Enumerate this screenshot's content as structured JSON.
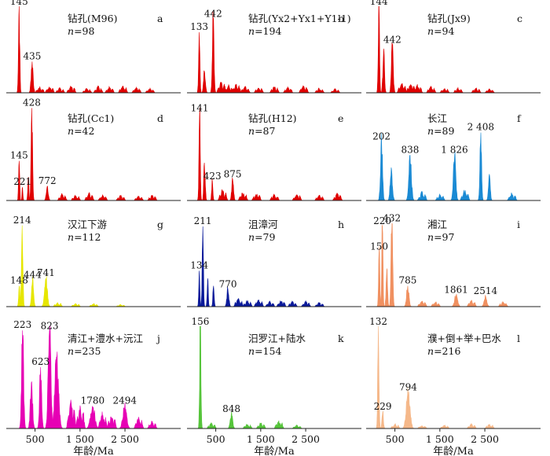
{
  "chart_data": [
    {
      "id": "a",
      "type": "area",
      "title": "钻孔(M96)",
      "n": "98",
      "letter": "a",
      "color": "#e00000",
      "xlim": [
        0,
        3600
      ],
      "ylim": [
        0,
        1
      ],
      "peaks": [
        {
          "x": 145,
          "y": 1.0,
          "w": 14,
          "label": "145"
        },
        {
          "x": 435,
          "y": 0.36,
          "w": 22,
          "label": "435"
        }
      ],
      "minor": [
        [
          600,
          0.06
        ],
        [
          820,
          0.07
        ],
        [
          1050,
          0.05
        ],
        [
          1300,
          0.07
        ],
        [
          1650,
          0.05
        ],
        [
          1900,
          0.07
        ],
        [
          2150,
          0.06
        ],
        [
          2450,
          0.07
        ],
        [
          2750,
          0.06
        ],
        [
          3050,
          0.05
        ]
      ]
    },
    {
      "id": "b",
      "type": "area",
      "title": "钻孔(Yx2+Yx1+Y1-1)",
      "n": "194",
      "letter": "b",
      "color": "#e00000",
      "xlim": [
        0,
        3600
      ],
      "ylim": [
        0,
        1
      ],
      "peaks": [
        {
          "x": 133,
          "y": 0.7,
          "w": 14,
          "label": "133"
        },
        {
          "x": 442,
          "y": 0.85,
          "w": 18,
          "label": "442"
        },
        {
          "x": 250,
          "y": 0.25,
          "w": 20,
          "label": ""
        }
      ],
      "minor": [
        [
          620,
          0.12
        ],
        [
          780,
          0.08
        ],
        [
          950,
          0.1
        ],
        [
          1150,
          0.07
        ],
        [
          1450,
          0.06
        ],
        [
          1800,
          0.07
        ],
        [
          2100,
          0.06
        ],
        [
          2450,
          0.08
        ],
        [
          2800,
          0.05
        ],
        [
          3150,
          0.04
        ]
      ]
    },
    {
      "id": "c",
      "type": "area",
      "title": "钻孔(Jx9)",
      "n": "94",
      "letter": "c",
      "color": "#e00000",
      "xlim": [
        0,
        3600
      ],
      "ylim": [
        0,
        1
      ],
      "peaks": [
        {
          "x": 144,
          "y": 1.0,
          "w": 14,
          "label": "144"
        },
        {
          "x": 442,
          "y": 0.55,
          "w": 20,
          "label": "442"
        },
        {
          "x": 250,
          "y": 0.45,
          "w": 18,
          "label": ""
        }
      ],
      "minor": [
        [
          650,
          0.12
        ],
        [
          850,
          0.1
        ],
        [
          1000,
          0.08
        ],
        [
          1300,
          0.07
        ],
        [
          1600,
          0.05
        ],
        [
          1900,
          0.05
        ],
        [
          2300,
          0.05
        ],
        [
          2600,
          0.04
        ]
      ]
    },
    {
      "id": "d",
      "type": "area",
      "title": "钻孔(Cc1)",
      "n": "42",
      "letter": "d",
      "color": "#e00000",
      "xlim": [
        0,
        3600
      ],
      "ylim": [
        0,
        1
      ],
      "peaks": [
        {
          "x": 145,
          "y": 0.42,
          "w": 12,
          "label": "145"
        },
        {
          "x": 221,
          "y": 0.14,
          "w": 10,
          "label": "221"
        },
        {
          "x": 428,
          "y": 0.98,
          "w": 16,
          "label": "428"
        },
        {
          "x": 772,
          "y": 0.15,
          "w": 22,
          "label": "772"
        },
        {
          "x": 350,
          "y": 0.25,
          "w": 12,
          "label": ""
        }
      ],
      "minor": [
        [
          1100,
          0.06
        ],
        [
          1400,
          0.05
        ],
        [
          1700,
          0.07
        ],
        [
          2000,
          0.05
        ],
        [
          2400,
          0.05
        ],
        [
          2800,
          0.04
        ],
        [
          3100,
          0.05
        ]
      ]
    },
    {
      "id": "e",
      "type": "area",
      "title": "钻孔(H12)",
      "n": "87",
      "letter": "e",
      "color": "#e00000",
      "xlim": [
        0,
        3600
      ],
      "ylim": [
        0,
        1
      ],
      "peaks": [
        {
          "x": 141,
          "y": 0.92,
          "w": 14,
          "label": "141"
        },
        {
          "x": 423,
          "y": 0.2,
          "w": 14,
          "label": "423"
        },
        {
          "x": 875,
          "y": 0.22,
          "w": 20,
          "label": "875"
        },
        {
          "x": 250,
          "y": 0.4,
          "w": 16,
          "label": ""
        }
      ],
      "minor": [
        [
          650,
          0.1
        ],
        [
          1100,
          0.08
        ],
        [
          1400,
          0.07
        ],
        [
          1800,
          0.06
        ],
        [
          2300,
          0.06
        ],
        [
          2800,
          0.05
        ],
        [
          3200,
          0.07
        ]
      ]
    },
    {
      "id": "f",
      "type": "area",
      "title": "长江",
      "n": "89",
      "letter": "f",
      "color": "#1a8ad4",
      "xlim": [
        0,
        3600
      ],
      "ylim": [
        0,
        1
      ],
      "peaks": [
        {
          "x": 202,
          "y": 0.62,
          "w": 22,
          "label": "202"
        },
        {
          "x": 838,
          "y": 0.48,
          "w": 28,
          "label": "838"
        },
        {
          "x": 1826,
          "y": 0.48,
          "w": 26,
          "label": "1 826"
        },
        {
          "x": 2408,
          "y": 0.72,
          "w": 18,
          "label": "2 408"
        },
        {
          "x": 420,
          "y": 0.35,
          "w": 24,
          "label": ""
        },
        {
          "x": 2600,
          "y": 0.28,
          "w": 20,
          "label": ""
        }
      ],
      "minor": [
        [
          1100,
          0.08
        ],
        [
          1500,
          0.06
        ],
        [
          2050,
          0.1
        ],
        [
          3100,
          0.07
        ]
      ]
    },
    {
      "id": "g",
      "type": "area",
      "title": "汉江下游",
      "n": "112",
      "letter": "g",
      "color": "#e6e600",
      "xlim": [
        0,
        3600
      ],
      "ylim": [
        0,
        1
      ],
      "peaks": [
        {
          "x": 148,
          "y": 0.22,
          "w": 14,
          "label": "148"
        },
        {
          "x": 214,
          "y": 0.86,
          "w": 16,
          "label": "214"
        },
        {
          "x": 444,
          "y": 0.28,
          "w": 22,
          "label": "444"
        },
        {
          "x": 741,
          "y": 0.3,
          "w": 30,
          "label": "741"
        }
      ],
      "minor": [
        [
          1000,
          0.04
        ],
        [
          1400,
          0.03
        ],
        [
          1800,
          0.03
        ],
        [
          2400,
          0.02
        ]
      ]
    },
    {
      "id": "h",
      "type": "area",
      "title": "沮漳河",
      "n": "79",
      "letter": "h",
      "color": "#0a1a9a",
      "xlim": [
        0,
        3600
      ],
      "ylim": [
        0,
        1
      ],
      "peaks": [
        {
          "x": 134,
          "y": 0.38,
          "w": 12,
          "label": "134"
        },
        {
          "x": 211,
          "y": 0.85,
          "w": 14,
          "label": "211"
        },
        {
          "x": 770,
          "y": 0.18,
          "w": 22,
          "label": "770"
        },
        {
          "x": 320,
          "y": 0.3,
          "w": 12,
          "label": ""
        },
        {
          "x": 450,
          "y": 0.22,
          "w": 14,
          "label": ""
        }
      ],
      "minor": [
        [
          1000,
          0.08
        ],
        [
          1200,
          0.06
        ],
        [
          1450,
          0.07
        ],
        [
          1700,
          0.05
        ],
        [
          1950,
          0.06
        ],
        [
          2200,
          0.05
        ],
        [
          2500,
          0.05
        ],
        [
          2800,
          0.04
        ]
      ]
    },
    {
      "id": "i",
      "type": "area",
      "title": "湘江",
      "n": "97",
      "letter": "i",
      "color": "#f09060",
      "xlim": [
        0,
        3600
      ],
      "ylim": [
        0,
        1
      ],
      "peaks": [
        {
          "x": 150,
          "y": 0.58,
          "w": 14,
          "label": "150"
        },
        {
          "x": 220,
          "y": 0.85,
          "w": 14,
          "label": "220"
        },
        {
          "x": 432,
          "y": 0.88,
          "w": 18,
          "label": "432"
        },
        {
          "x": 785,
          "y": 0.22,
          "w": 26,
          "label": "785"
        },
        {
          "x": 1861,
          "y": 0.12,
          "w": 34,
          "label": "1861"
        },
        {
          "x": 2514,
          "y": 0.11,
          "w": 30,
          "label": "2514"
        },
        {
          "x": 320,
          "y": 0.4,
          "w": 16,
          "label": ""
        }
      ],
      "minor": [
        [
          1100,
          0.06
        ],
        [
          1400,
          0.05
        ],
        [
          2200,
          0.06
        ],
        [
          2900,
          0.05
        ]
      ]
    },
    {
      "id": "j",
      "type": "area",
      "title": "清江+澧水+沅江",
      "n": "235",
      "letter": "j",
      "color": "#e600b4",
      "xlim": [
        0,
        3600
      ],
      "ylim": [
        0,
        1
      ],
      "peaks": [
        {
          "x": 223,
          "y": 0.96,
          "w": 22,
          "label": "223"
        },
        {
          "x": 623,
          "y": 0.6,
          "w": 22,
          "label": "623"
        },
        {
          "x": 823,
          "y": 0.95,
          "w": 30,
          "label": "823"
        },
        {
          "x": 1780,
          "y": 0.22,
          "w": 45,
          "label": "1780"
        },
        {
          "x": 2494,
          "y": 0.22,
          "w": 40,
          "label": "2494"
        },
        {
          "x": 420,
          "y": 0.45,
          "w": 24,
          "label": ""
        },
        {
          "x": 980,
          "y": 0.7,
          "w": 40,
          "label": ""
        }
      ],
      "minor": [
        [
          1300,
          0.25
        ],
        [
          1500,
          0.2
        ],
        [
          2000,
          0.14
        ],
        [
          2200,
          0.12
        ],
        [
          2800,
          0.1
        ],
        [
          3100,
          0.06
        ]
      ]
    },
    {
      "id": "k",
      "type": "area",
      "title": "汨罗江+陆水",
      "n": "154",
      "letter": "k",
      "color": "#55c43a",
      "xlim": [
        0,
        3600
      ],
      "ylim": [
        0,
        1
      ],
      "peaks": [
        {
          "x": 156,
          "y": 1.0,
          "w": 14,
          "label": "156"
        },
        {
          "x": 848,
          "y": 0.14,
          "w": 26,
          "label": "848"
        }
      ],
      "minor": [
        [
          400,
          0.05
        ],
        [
          1200,
          0.04
        ],
        [
          1500,
          0.05
        ],
        [
          1900,
          0.07
        ],
        [
          2300,
          0.03
        ]
      ]
    },
    {
      "id": "l",
      "type": "area",
      "title": "濮+倒+举+巴水",
      "n": "216",
      "letter": "l",
      "color": "#f5b88a",
      "xlim": [
        0,
        3600
      ],
      "ylim": [
        0,
        1
      ],
      "peaks": [
        {
          "x": 132,
          "y": 1.0,
          "w": 14,
          "label": "132"
        },
        {
          "x": 229,
          "y": 0.16,
          "w": 16,
          "label": "229"
        },
        {
          "x": 794,
          "y": 0.35,
          "w": 40,
          "label": "794"
        }
      ],
      "minor": [
        [
          500,
          0.04
        ],
        [
          1100,
          0.03
        ],
        [
          1600,
          0.03
        ],
        [
          2200,
          0.04
        ],
        [
          2600,
          0.04
        ]
      ]
    }
  ],
  "axis": {
    "ticks": [
      {
        "x": 500,
        "label": "500"
      },
      {
        "x": 1500,
        "label": "1 500"
      },
      {
        "x": 2500,
        "label": "2 500"
      }
    ],
    "ticks_right": [
      {
        "x": 500,
        "label": "500"
      },
      {
        "x": 1500,
        "label": "1 500"
      },
      {
        "x": 2500,
        "label": "2 500"
      }
    ],
    "xlabel": "年龄/Ma"
  }
}
